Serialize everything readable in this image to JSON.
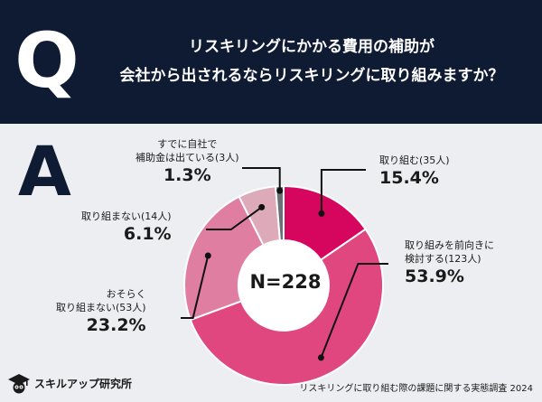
{
  "header": {
    "q_letter": "Q",
    "question_line1": "リスキリングにかかる費用の補助が",
    "question_line2": "会社から出されるならリスキリングに取り組みますか？"
  },
  "answer_letter": "A",
  "chart_data": {
    "type": "pie",
    "donut": true,
    "center_label": "N=228",
    "slices": [
      {
        "name_lines": [
          "取り組む(35人)"
        ],
        "count": 35,
        "value": 15.4,
        "pct_label": "15.4%",
        "color": "#d6065f"
      },
      {
        "name_lines": [
          "取り組みを前向きに",
          "検討する(123人)"
        ],
        "count": 123,
        "value": 53.9,
        "pct_label": "53.9%",
        "color": "#e0477f"
      },
      {
        "name_lines": [
          "おそらく",
          "取り組まない(53人)"
        ],
        "count": 53,
        "value": 23.2,
        "pct_label": "23.2%",
        "color": "#df7ea0"
      },
      {
        "name_lines": [
          "取り組まない(14人)"
        ],
        "count": 14,
        "value": 6.1,
        "pct_label": "6.1%",
        "color": "#dcaab8"
      },
      {
        "name_lines": [
          "すでに自社で",
          "補助金は出ている(3人)"
        ],
        "count": 3,
        "value": 1.3,
        "pct_label": "1.3%",
        "color": "#6b6f76"
      }
    ]
  },
  "brand": {
    "name": "スキルアップ研究所",
    "icon": "graduation-cap-owl-icon"
  },
  "footer_note": "リスキリングに取り組む際の課題に関する実態調査 2024",
  "colors": {
    "navy": "#0f1b33",
    "background": "#eceef1",
    "leader": "#111111"
  }
}
